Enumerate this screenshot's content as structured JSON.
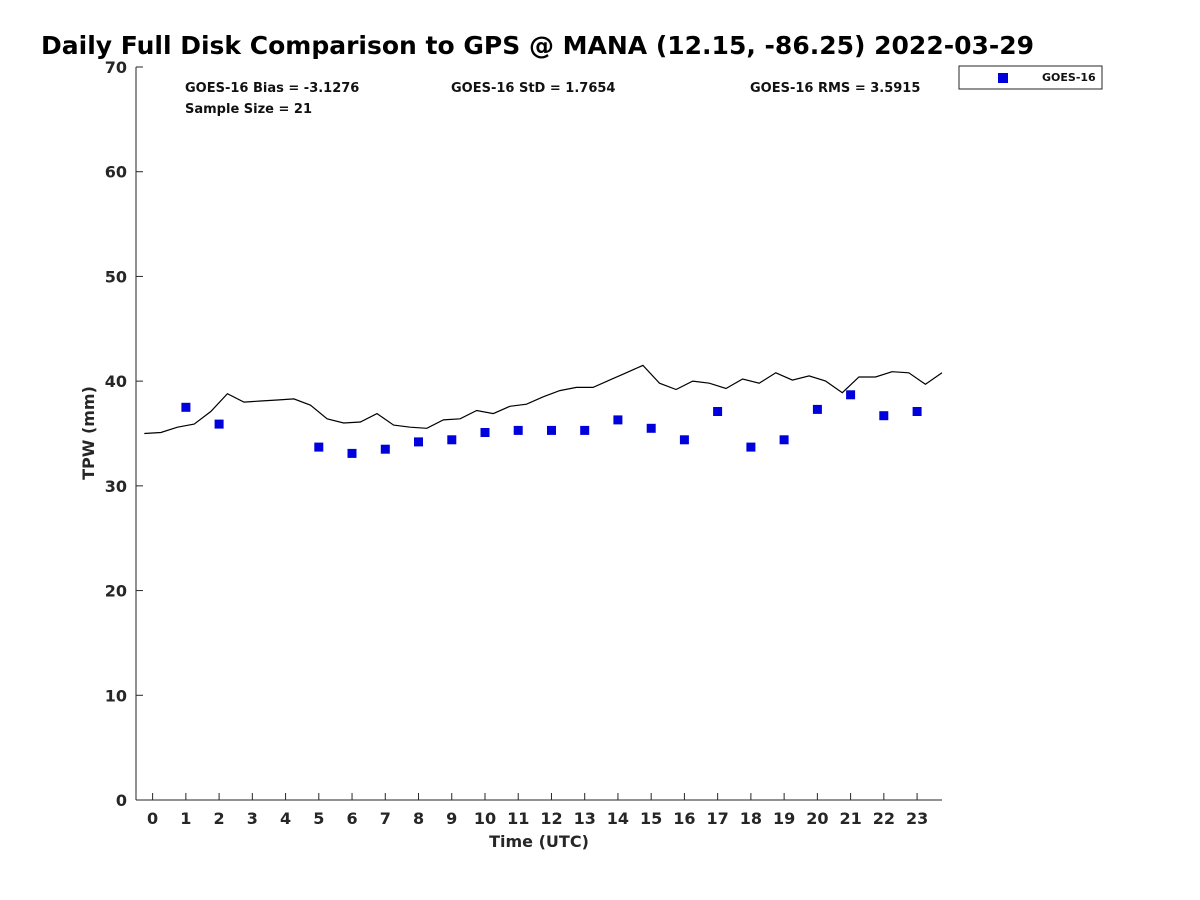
{
  "chart_data": {
    "type": "scatter",
    "title": "Daily Full Disk Comparison to GPS @ MANA (12.15, -86.25) 2022-03-29",
    "xlabel": "Time (UTC)",
    "ylabel": "TPW (mm)",
    "xlim": [
      -0.5,
      23.75
    ],
    "ylim": [
      0,
      70
    ],
    "x_ticks": [
      0,
      1,
      2,
      3,
      4,
      5,
      6,
      7,
      8,
      9,
      10,
      11,
      12,
      13,
      14,
      15,
      16,
      17,
      18,
      19,
      20,
      21,
      22,
      23
    ],
    "y_ticks": [
      0,
      10,
      20,
      30,
      40,
      50,
      60,
      70
    ],
    "grid": false,
    "legend": {
      "placement": "outside-top-right",
      "entries": [
        "GOES-16"
      ]
    },
    "stats": {
      "bias": "GOES-16 Bias = -3.1276",
      "std": "GOES-16 StD = 1.7654",
      "rms": "GOES-16 RMS = 3.5915",
      "sample_size": "Sample Size = 21"
    },
    "series": [
      {
        "name": "GOES-16",
        "kind": "scatter",
        "color": "#0000dd",
        "marker": "square",
        "x": [
          1,
          2,
          5,
          6,
          7,
          8,
          9,
          10,
          11,
          12,
          13,
          14,
          15,
          16,
          17,
          18,
          19,
          20,
          21,
          22,
          23
        ],
        "y": [
          37.5,
          35.9,
          33.7,
          33.1,
          33.5,
          34.2,
          34.4,
          35.1,
          35.3,
          35.3,
          35.3,
          36.3,
          35.5,
          34.4,
          37.1,
          33.7,
          34.4,
          37.3,
          38.7,
          36.7,
          37.1
        ]
      },
      {
        "kind": "line",
        "color": "#000000",
        "x": [
          -0.25,
          0.25,
          0.75,
          1.25,
          1.75,
          2.25,
          2.75,
          3.25,
          3.75,
          4.25,
          4.75,
          5.25,
          5.75,
          6.25,
          6.75,
          7.25,
          7.75,
          8.25,
          8.75,
          9.25,
          9.75,
          10.25,
          10.75,
          11.25,
          11.75,
          12.25,
          12.75,
          13.25,
          13.75,
          14.25,
          14.75,
          15.25,
          15.75,
          16.25,
          16.75,
          17.25,
          17.75,
          18.25,
          18.75,
          19.25,
          19.75,
          20.25,
          20.75,
          21.25,
          21.75,
          22.25,
          22.75,
          23.25,
          23.75
        ],
        "y": [
          35.0,
          35.1,
          35.6,
          35.9,
          37.1,
          38.8,
          38.0,
          38.1,
          38.2,
          38.3,
          37.7,
          36.4,
          36.0,
          36.1,
          36.9,
          35.8,
          35.6,
          35.5,
          36.3,
          36.4,
          37.2,
          36.9,
          37.6,
          37.8,
          38.5,
          39.1,
          39.4,
          39.4,
          40.1,
          40.8,
          41.5,
          39.8,
          39.2,
          40.0,
          39.8,
          39.3,
          40.2,
          39.8,
          40.8,
          40.1,
          40.5,
          40.0,
          38.9,
          40.4,
          40.4,
          40.9,
          40.8,
          39.7,
          40.8
        ]
      }
    ]
  }
}
